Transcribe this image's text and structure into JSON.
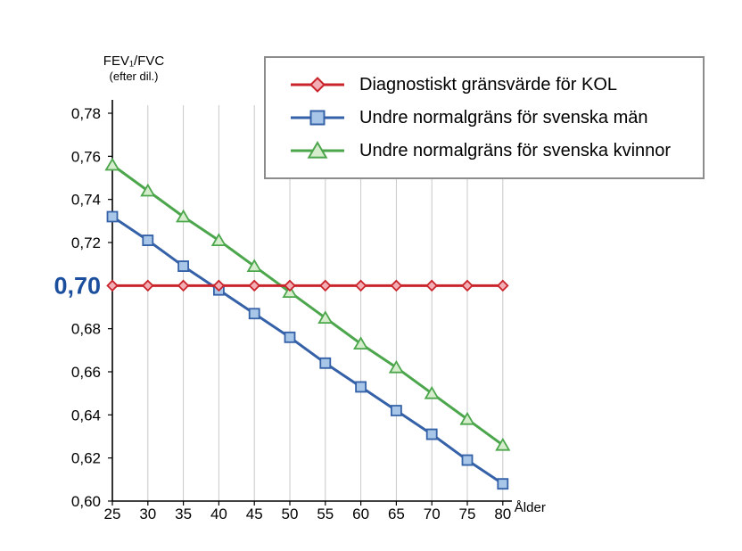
{
  "chart_data": {
    "type": "line",
    "title": "",
    "xlabel": "Ålder",
    "ylabel_line1": "FEV₁/FVC",
    "ylabel_line2": "(efter dil.)",
    "x": [
      25,
      30,
      35,
      40,
      45,
      50,
      55,
      60,
      65,
      70,
      75,
      80
    ],
    "xlim": [
      25,
      80
    ],
    "ylim": [
      0.6,
      0.78
    ],
    "ytick_step": 0.02,
    "ytick_labels": [
      "0,60",
      "0,62",
      "0,64",
      "0,66",
      "0,68",
      "0,70",
      "0,72",
      "0,74",
      "0,76",
      "0,78"
    ],
    "highlighted_ytick": "0,70",
    "highlight_color": "#1b4f9e",
    "grid": "vertical",
    "legend_position": "top-right",
    "axis_color": "#000000",
    "grid_color": "#c8c8c8",
    "series": [
      {
        "name": "Diagnostiskt gränsvärde för KOL",
        "marker": "diamond",
        "color": "#c9242b",
        "marker_fill": "#f2aeb4",
        "values": [
          0.7,
          0.7,
          0.7,
          0.7,
          0.7,
          0.7,
          0.7,
          0.7,
          0.7,
          0.7,
          0.7,
          0.7
        ]
      },
      {
        "name": "Undre normalgräns för svenska män",
        "marker": "square",
        "color": "#3461a7",
        "marker_fill": "#a8c6e8",
        "values": [
          0.732,
          0.721,
          0.709,
          0.698,
          0.687,
          0.676,
          0.664,
          0.653,
          0.642,
          0.631,
          0.619,
          0.608
        ]
      },
      {
        "name": "Undre normalgräns för svenska kvinnor",
        "marker": "triangle",
        "color": "#4ca64c",
        "marker_fill": "#d6edcd",
        "values": [
          0.756,
          0.744,
          0.732,
          0.721,
          0.709,
          0.697,
          0.685,
          0.673,
          0.662,
          0.65,
          0.638,
          0.626
        ]
      }
    ]
  }
}
